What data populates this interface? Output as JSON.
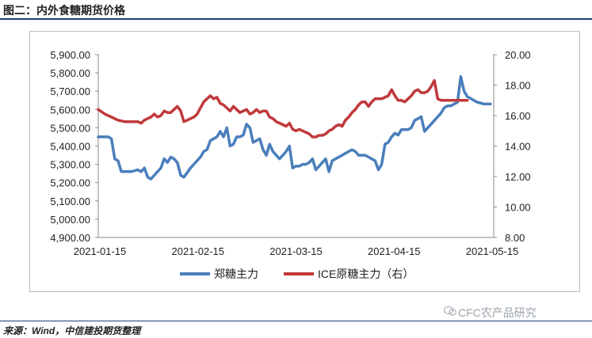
{
  "header": {
    "title": "图二：内外食糖期货价格"
  },
  "footer": {
    "source": "来源：Wind，中信建投期货整理",
    "watermark": "CFC农产品研究"
  },
  "colors": {
    "zheng": "#4a7ebb",
    "ice": "#c0393b",
    "title_line": "#1f3f77"
  },
  "chart_data": {
    "type": "line",
    "title": "",
    "x_ticks": [
      "2021-01-15",
      "2021-02-15",
      "2021-03-15",
      "2021-04-15",
      "2021-05-15"
    ],
    "x_range": [
      0,
      120
    ],
    "y_left": {
      "range": [
        4900,
        5900
      ],
      "ticks": [
        "4,900.00",
        "5,000.00",
        "5,100.00",
        "5,200.00",
        "5,300.00",
        "5,400.00",
        "5,500.00",
        "5,600.00",
        "5,700.00",
        "5,800.00",
        "5,900.00"
      ],
      "tick_values": [
        4900,
        5000,
        5100,
        5200,
        5300,
        5400,
        5500,
        5600,
        5700,
        5800,
        5900
      ]
    },
    "y_right": {
      "range": [
        8,
        20
      ],
      "ticks": [
        "8.00",
        "10.00",
        "12.00",
        "14.00",
        "16.00",
        "18.00",
        "20.00"
      ],
      "tick_values": [
        8,
        10,
        12,
        14,
        16,
        18,
        20
      ]
    },
    "series": [
      {
        "name": "郑糖主力",
        "axis": "left",
        "x": [
          0,
          2,
          3,
          4,
          5,
          6,
          7,
          8,
          10,
          12,
          13,
          14,
          15,
          16,
          17,
          18,
          19,
          20,
          21,
          22,
          23,
          24,
          25,
          26,
          28,
          30,
          31,
          32,
          33,
          34,
          35,
          36,
          37,
          38,
          39,
          40,
          41,
          42,
          43,
          44,
          45,
          46,
          47,
          48,
          49,
          50,
          51,
          52,
          53,
          55,
          56,
          57,
          58,
          59,
          60,
          61,
          62,
          63,
          64,
          65,
          66,
          68,
          69,
          70,
          71,
          72,
          73,
          74,
          75,
          76,
          77,
          78,
          79,
          80,
          81,
          82,
          83,
          84,
          85,
          86,
          87,
          88,
          89,
          90,
          91,
          92,
          93,
          94,
          95,
          96,
          97,
          98,
          99,
          100,
          101,
          102,
          103,
          104,
          105,
          106,
          107,
          108,
          109,
          110,
          111,
          112,
          113,
          114,
          115,
          116,
          117,
          118,
          119
        ],
        "y": [
          5450,
          5450,
          5450,
          5440,
          5330,
          5320,
          5260,
          5260,
          5260,
          5270,
          5260,
          5280,
          5230,
          5220,
          5240,
          5260,
          5280,
          5330,
          5310,
          5340,
          5330,
          5310,
          5240,
          5230,
          5280,
          5320,
          5340,
          5370,
          5380,
          5430,
          5440,
          5450,
          5480,
          5450,
          5500,
          5400,
          5410,
          5450,
          5450,
          5460,
          5520,
          5500,
          5420,
          5430,
          5440,
          5380,
          5350,
          5410,
          5370,
          5330,
          5350,
          5370,
          5400,
          5280,
          5290,
          5290,
          5300,
          5300,
          5310,
          5330,
          5270,
          5310,
          5330,
          5260,
          5320,
          5330,
          5340,
          5350,
          5360,
          5370,
          5380,
          5370,
          5350,
          5350,
          5350,
          5340,
          5330,
          5320,
          5270,
          5300,
          5410,
          5420,
          5450,
          5470,
          5460,
          5490,
          5490,
          5490,
          5500,
          5540,
          5550,
          5560,
          5480,
          5500,
          5520,
          5540,
          5560,
          5580,
          5610,
          5620,
          5620,
          5630,
          5640,
          5780,
          5700,
          5670,
          5660,
          5650,
          5640,
          5635,
          5630,
          5630,
          5630
        ],
        "x_end": 118
      },
      {
        "name": "ICE原糖主力（右）",
        "axis": "right",
        "x": [
          0,
          2,
          4,
          6,
          8,
          10,
          12,
          13,
          14,
          15,
          16,
          17,
          18,
          19,
          20,
          21,
          22,
          23,
          24,
          25,
          26,
          27,
          28,
          29,
          30,
          31,
          32,
          33,
          34,
          35,
          36,
          37,
          38,
          39,
          40,
          41,
          42,
          43,
          44,
          45,
          46,
          47,
          48,
          49,
          50,
          51,
          52,
          53,
          54,
          55,
          56,
          57,
          58,
          59,
          60,
          61,
          62,
          63,
          64,
          65,
          66,
          67,
          68,
          69,
          70,
          71,
          72,
          73,
          74,
          75,
          76,
          77,
          78,
          79,
          80,
          81,
          82,
          83,
          84,
          85,
          86,
          87,
          88,
          89,
          90,
          91,
          92,
          93,
          94,
          95,
          96,
          97,
          98,
          99,
          100,
          101,
          102,
          103,
          104,
          105,
          106,
          107,
          108,
          109,
          110,
          111,
          112
        ],
        "y": [
          16.4,
          16.1,
          15.9,
          15.7,
          15.6,
          15.6,
          15.6,
          15.5,
          15.7,
          15.8,
          15.9,
          16.1,
          15.9,
          16.0,
          16.3,
          16.2,
          16.2,
          16.4,
          16.6,
          16.3,
          15.6,
          15.7,
          15.8,
          15.9,
          16.1,
          16.5,
          16.9,
          17.1,
          17.3,
          17.1,
          17.2,
          16.8,
          16.7,
          16.5,
          16.3,
          16.6,
          16.4,
          16.2,
          16.3,
          16.4,
          16.1,
          16.2,
          16.4,
          16.2,
          16.3,
          16.3,
          15.9,
          15.8,
          15.6,
          15.5,
          15.4,
          15.3,
          15.5,
          15.1,
          15.0,
          15.1,
          15.0,
          14.9,
          14.8,
          14.6,
          14.6,
          14.7,
          14.7,
          14.8,
          15.0,
          15.1,
          15.3,
          15.4,
          15.3,
          15.7,
          15.9,
          16.2,
          16.4,
          16.7,
          16.9,
          16.9,
          16.6,
          16.9,
          17.1,
          17.1,
          17.1,
          17.2,
          17.3,
          17.7,
          17.3,
          17.0,
          17.0,
          16.9,
          17.1,
          17.3,
          17.6,
          17.7,
          17.5,
          17.5,
          17.6,
          17.9,
          18.3,
          17.1,
          17.0,
          17.0,
          17.0,
          17.0,
          17.0,
          17.0,
          17.0,
          17.0,
          17.0
        ],
        "x_end": 109
      }
    ],
    "legend": {
      "position": "bottom",
      "entries": [
        "郑糖主力",
        "ICE原糖主力（右）"
      ]
    }
  }
}
